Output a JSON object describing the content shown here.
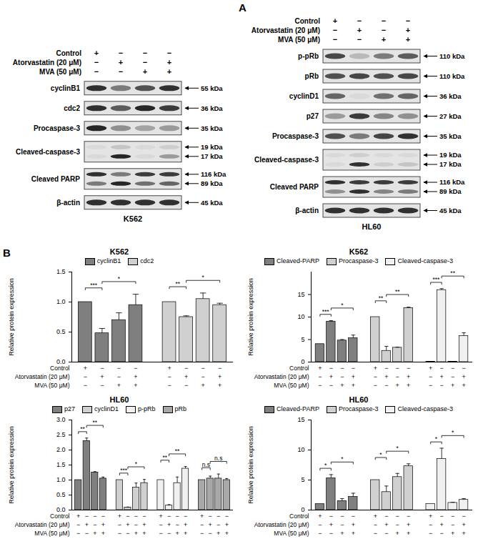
{
  "panel_labels": [
    "A",
    "B"
  ],
  "blots": [
    {
      "label": "K562",
      "conditions": [
        {
          "label": "Control",
          "signs": [
            "+",
            "−",
            "−",
            "−"
          ]
        },
        {
          "label": "Atorvastatin (20 μM)",
          "signs": [
            "−",
            "+",
            "−",
            "+"
          ]
        },
        {
          "label": "MVA (50 μM)",
          "signs": [
            "−",
            "−",
            "+",
            "+"
          ]
        }
      ],
      "rows": [
        {
          "protein": "cyclinB1",
          "bands": [
            {
              "size": "55 kDa",
              "intensity": [
                0.85,
                0.5,
                0.7,
                0.85
              ]
            }
          ]
        },
        {
          "protein": "cdc2",
          "bands": [
            {
              "size": "36 kDa",
              "intensity": [
                0.85,
                0.65,
                0.9,
                0.8
              ]
            }
          ]
        },
        {
          "protein": "Procaspase-3",
          "bands": [
            {
              "size": "35 kDa",
              "intensity": [
                0.9,
                0.4,
                0.3,
                0.35
              ]
            }
          ]
        },
        {
          "protein": "Cleaved-caspase-3",
          "bands": [
            {
              "size": "19 kDa",
              "intensity": [
                0.05,
                0.15,
                0.05,
                0.1
              ]
            },
            {
              "size": "17 kDa",
              "intensity": [
                0.05,
                0.9,
                0.05,
                0.35
              ]
            }
          ]
        },
        {
          "protein": "Cleaved PARP",
          "bands": [
            {
              "size": "116 kDa",
              "intensity": [
                0.85,
                0.5,
                0.8,
                0.8
              ]
            },
            {
              "size": "89 kDa",
              "intensity": [
                0.5,
                0.9,
                0.55,
                0.6
              ]
            }
          ]
        },
        {
          "protein": "β-actin",
          "bands": [
            {
              "size": "45 kDa",
              "intensity": [
                0.85,
                0.85,
                0.85,
                0.85
              ]
            }
          ]
        }
      ]
    },
    {
      "label": "HL60",
      "conditions": [
        {
          "label": "Control",
          "signs": [
            "+",
            "−",
            "−",
            "−"
          ]
        },
        {
          "label": "Atorvastatin (20 μM)",
          "signs": [
            "−",
            "+",
            "−",
            "+"
          ]
        },
        {
          "label": "MVA (50 μM)",
          "signs": [
            "−",
            "−",
            "+",
            "+"
          ]
        }
      ],
      "rows": [
        {
          "protein": "p-pRb",
          "bands": [
            {
              "size": "110 kDa",
              "intensity": [
                0.75,
                0.2,
                0.5,
                0.65
              ]
            }
          ]
        },
        {
          "protein": "pRb",
          "bands": [
            {
              "size": "110 kDa",
              "intensity": [
                0.7,
                0.75,
                0.7,
                0.75
              ]
            }
          ]
        },
        {
          "protein": "cyclinD1",
          "bands": [
            {
              "size": "36 kDa",
              "intensity": [
                0.6,
                0.05,
                0.55,
                0.6
              ]
            }
          ]
        },
        {
          "protein": "p27",
          "bands": [
            {
              "size": "27 kDa",
              "intensity": [
                0.35,
                0.8,
                0.45,
                0.4
              ]
            }
          ]
        },
        {
          "protein": "Procaspase-3",
          "bands": [
            {
              "size": "35 kDa",
              "intensity": [
                0.7,
                0.5,
                0.75,
                0.85
              ]
            }
          ]
        },
        {
          "protein": "Cleaved-caspase-3",
          "bands": [
            {
              "size": "19 kDa",
              "intensity": [
                0.05,
                0.1,
                0.05,
                0.05
              ]
            },
            {
              "size": "17 kDa",
              "intensity": [
                0.05,
                0.85,
                0.1,
                0.15
              ]
            }
          ]
        },
        {
          "protein": "Cleaved PARP",
          "bands": [
            {
              "size": "116 kDa",
              "intensity": [
                0.85,
                0.8,
                0.8,
                0.8
              ]
            },
            {
              "size": "89 kDa",
              "intensity": [
                0.4,
                0.85,
                0.45,
                0.5
              ]
            }
          ]
        },
        {
          "protein": "β-actin",
          "bands": [
            {
              "size": "45 kDa",
              "intensity": [
                0.85,
                0.85,
                0.85,
                0.85
              ]
            }
          ]
        }
      ]
    }
  ],
  "chart_data": [
    {
      "type": "bar",
      "title": "K562",
      "y_label": "Relative protein expression",
      "legend": "top",
      "ylim": [
        0,
        1.5
      ],
      "yticks": [
        {
          "value": 0,
          "label": "0.0"
        },
        {
          "value": 0.5,
          "label": "0.5"
        },
        {
          "value": 1,
          "label": "1.0"
        },
        {
          "value": 1.5,
          "label": "1.5"
        }
      ],
      "series": [
        {
          "name": "cyclinB1",
          "color": "#7f7f7f",
          "values": [
            1.0,
            0.48,
            0.7,
            0.95
          ],
          "errors": [
            0,
            0.08,
            0.12,
            0.18
          ]
        },
        {
          "name": "cdc2",
          "color": "#d0d0d0",
          "values": [
            1.0,
            0.75,
            1.05,
            0.95
          ],
          "errors": [
            0,
            0.02,
            0.1,
            0.03
          ]
        }
      ],
      "conditions": [
        {
          "label": "Control",
          "signs": [
            "+",
            "−",
            "−",
            "−",
            "+",
            "−",
            "−",
            "−"
          ]
        },
        {
          "label": "Atorvastatin (20 μM)",
          "signs": [
            "−",
            "+",
            "−",
            "+",
            "−",
            "+",
            "−",
            "+"
          ]
        },
        {
          "label": "MVA (50 μM)",
          "signs": [
            "−",
            "−",
            "+",
            "+",
            "−",
            "−",
            "+",
            "+"
          ]
        }
      ],
      "significance": [
        {
          "series": "cyclinB1",
          "from": 0,
          "to": 1,
          "label": "***"
        },
        {
          "series": "cyclinB1",
          "from": 1,
          "to": 3,
          "label": "*"
        },
        {
          "series": "cdc2",
          "from": 0,
          "to": 1,
          "label": "**"
        },
        {
          "series": "cdc2",
          "from": 1,
          "to": 3,
          "label": "*"
        }
      ]
    },
    {
      "type": "bar",
      "title": "K562",
      "y_label": "Relative protein expression",
      "legend": "top",
      "ylim": [
        0,
        20
      ],
      "yticks": [
        0,
        5,
        10,
        15
      ],
      "series": [
        {
          "name": "Cleaved-PARP",
          "color": "#7f7f7f",
          "values": [
            4.0,
            9.0,
            4.8,
            5.3
          ],
          "errors": [
            0,
            0.2,
            0.2,
            0.7
          ]
        },
        {
          "name": "Procaspase-3",
          "color": "#d0d0d0",
          "values": [
            10.0,
            2.5,
            3.2,
            12.0
          ],
          "errors": [
            0,
            1.0,
            0.1,
            0.2
          ]
        },
        {
          "name": "Cleaved-caspase-3",
          "color": "#f0f0f0",
          "values": [
            0.1,
            16.0,
            0.1,
            5.8
          ],
          "errors": [
            0,
            0.3,
            0,
            0.7
          ]
        }
      ],
      "conditions": [
        {
          "label": "Control",
          "signs": [
            "+",
            "−",
            "−",
            "−",
            "+",
            "−",
            "−",
            "−",
            "+",
            "−",
            "−",
            "−"
          ]
        },
        {
          "label": "Atorvastatin (20 μM)",
          "signs": [
            "−",
            "+",
            "−",
            "+",
            "−",
            "+",
            "−",
            "+",
            "−",
            "+",
            "−",
            "+"
          ]
        },
        {
          "label": "MVA (50 μM)",
          "signs": [
            "−",
            "−",
            "+",
            "+",
            "−",
            "−",
            "+",
            "+",
            "−",
            "−",
            "+",
            "+"
          ]
        }
      ],
      "significance": [
        {
          "series": "Cleaved-PARP",
          "from": 0,
          "to": 1,
          "label": "***"
        },
        {
          "series": "Cleaved-PARP",
          "from": 1,
          "to": 3,
          "label": "*"
        },
        {
          "series": "Procaspase-3",
          "from": 0,
          "to": 1,
          "label": "**"
        },
        {
          "series": "Procaspase-3",
          "from": 1,
          "to": 3,
          "label": "**"
        },
        {
          "series": "Cleaved-caspase-3",
          "from": 0,
          "to": 1,
          "label": "***"
        },
        {
          "series": "Cleaved-caspase-3",
          "from": 1,
          "to": 3,
          "label": "**"
        }
      ]
    },
    {
      "type": "bar",
      "title": "HL60",
      "y_label": "Relative protein expression",
      "legend": "top",
      "ylim": [
        0,
        3
      ],
      "yticks": [
        {
          "value": 0,
          "label": "0.0"
        },
        {
          "value": 0.5,
          "label": "0.5"
        },
        {
          "value": 1,
          "label": "1.0"
        },
        {
          "value": 1.5,
          "label": "1.5"
        },
        {
          "value": 2,
          "label": "2.0"
        },
        {
          "value": 2.5,
          "label": "2.5"
        },
        {
          "value": 3,
          "label": "3.0"
        }
      ],
      "series": [
        {
          "name": "p27",
          "color": "#7f7f7f",
          "values": [
            1.0,
            2.3,
            1.25,
            1.05
          ],
          "errors": [
            0,
            0.1,
            0.03,
            0.05
          ]
        },
        {
          "name": "cyclinD1",
          "color": "#d0d0d0",
          "values": [
            1.0,
            0.08,
            0.75,
            0.9
          ],
          "errors": [
            0,
            0.02,
            0.15,
            0.12
          ]
        },
        {
          "name": "p-pRb",
          "color": "#f0f0f0",
          "values": [
            1.0,
            0.15,
            0.9,
            1.38
          ],
          "errors": [
            0,
            0.03,
            0.2,
            0.07
          ]
        },
        {
          "name": "pRb",
          "color": "#a8a8a8",
          "values": [
            1.0,
            1.05,
            1.05,
            1.0
          ],
          "errors": [
            0,
            0.08,
            0.15,
            0.05
          ]
        }
      ],
      "conditions": [
        {
          "label": "Control",
          "signs": [
            "+",
            "−",
            "−",
            "−",
            "+",
            "−",
            "−",
            "−",
            "+",
            "−",
            "−",
            "−",
            "+",
            "−",
            "−",
            "−"
          ]
        },
        {
          "label": "Atorvastatin (20 μM)",
          "signs": [
            "−",
            "+",
            "−",
            "+",
            "−",
            "+",
            "−",
            "+",
            "−",
            "+",
            "−",
            "+",
            "−",
            "+",
            "−",
            "+"
          ]
        },
        {
          "label": "MVA (50 μM)",
          "signs": [
            "−",
            "−",
            "+",
            "+",
            "−",
            "−",
            "+",
            "+",
            "−",
            "−",
            "+",
            "+",
            "−",
            "−",
            "+",
            "+"
          ]
        }
      ],
      "significance": [
        {
          "series": "p27",
          "from": 0,
          "to": 1,
          "label": "**"
        },
        {
          "series": "p27",
          "from": 1,
          "to": 3,
          "label": "**"
        },
        {
          "series": "cyclinD1",
          "from": 0,
          "to": 1,
          "label": "***"
        },
        {
          "series": "cyclinD1",
          "from": 1,
          "to": 3,
          "label": "*"
        },
        {
          "series": "p-pRb",
          "from": 0,
          "to": 1,
          "label": "**"
        },
        {
          "series": "p-pRb",
          "from": 1,
          "to": 3,
          "label": "**"
        },
        {
          "series": "pRb",
          "from": 0,
          "to": 1,
          "label": "n.s"
        },
        {
          "series": "pRb",
          "from": 1,
          "to": 3,
          "label": "n.s"
        }
      ]
    },
    {
      "type": "bar",
      "title": "HL60",
      "y_label": "Relative protein expression",
      "legend": "top",
      "ylim": [
        0,
        15
      ],
      "yticks": [
        0,
        5,
        10,
        15
      ],
      "series": [
        {
          "name": "Cleaved-PARP",
          "color": "#7f7f7f",
          "values": [
            1.0,
            5.3,
            1.5,
            2.2
          ],
          "errors": [
            0,
            0.6,
            0.4,
            0.6
          ]
        },
        {
          "name": "Procaspase-3",
          "color": "#d0d0d0",
          "values": [
            5.0,
            3.0,
            5.5,
            7.3
          ],
          "errors": [
            0,
            1.0,
            0.6,
            0.4
          ]
        },
        {
          "name": "Cleaved-caspase-3",
          "color": "#f0f0f0",
          "values": [
            1.0,
            8.5,
            1.2,
            1.7
          ],
          "errors": [
            0,
            1.8,
            0.1,
            0.2
          ]
        }
      ],
      "conditions": [
        {
          "label": "Control",
          "signs": [
            "+",
            "−",
            "−",
            "−",
            "+",
            "−",
            "−",
            "−",
            "+",
            "−",
            "−",
            "−"
          ]
        },
        {
          "label": "Atorvastatin (20 μM)",
          "signs": [
            "−",
            "+",
            "−",
            "+",
            "−",
            "+",
            "−",
            "+",
            "−",
            "+",
            "−",
            "+"
          ]
        },
        {
          "label": "MVA (50 μM)",
          "signs": [
            "−",
            "−",
            "+",
            "+",
            "−",
            "−",
            "+",
            "+",
            "−",
            "−",
            "+",
            "+"
          ]
        }
      ],
      "significance": [
        {
          "series": "Cleaved-PARP",
          "from": 0,
          "to": 1,
          "label": "*"
        },
        {
          "series": "Cleaved-PARP",
          "from": 1,
          "to": 3,
          "label": "*"
        },
        {
          "series": "Procaspase-3",
          "from": 0,
          "to": 1,
          "label": "*"
        },
        {
          "series": "Procaspase-3",
          "from": 1,
          "to": 3,
          "label": "*"
        },
        {
          "series": "Cleaved-caspase-3",
          "from": 0,
          "to": 1,
          "label": "*"
        },
        {
          "series": "Cleaved-caspase-3",
          "from": 1,
          "to": 3,
          "label": "*"
        }
      ]
    }
  ]
}
